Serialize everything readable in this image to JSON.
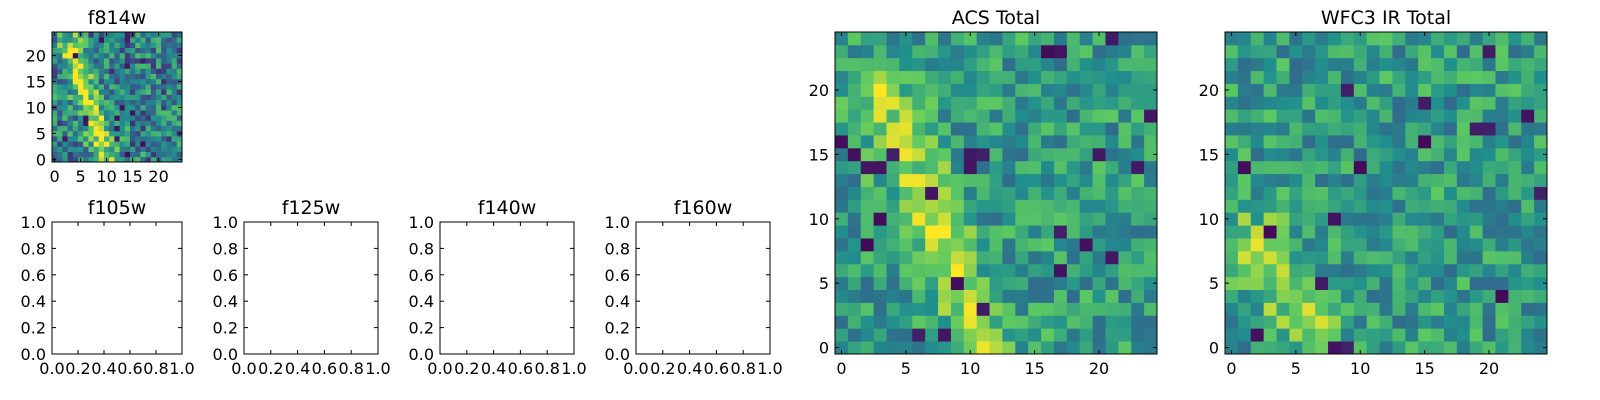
{
  "colormap": {
    "name": "viridis",
    "stops": [
      "#440154",
      "#3b528b",
      "#21908d",
      "#5dc962",
      "#fde725"
    ]
  },
  "chart_data": [
    {
      "id": "f814w",
      "type": "heatmap",
      "title": "f814w",
      "grid_size": 25,
      "x_ticks": [
        "0",
        "5",
        "10",
        "15",
        "20"
      ],
      "y_ticks": [
        "0",
        "5",
        "10",
        "15",
        "20"
      ],
      "xlim": [
        -0.5,
        24.5
      ],
      "ylim": [
        -0.5,
        24.5
      ],
      "pattern": {
        "ridge_start": [
          3,
          22
        ],
        "ridge_end": [
          10,
          0
        ],
        "seed": 11,
        "contrast": "high"
      }
    },
    {
      "id": "f105w",
      "type": "empty",
      "title": "f105w",
      "x_ticks": [
        "0.0",
        "0.2",
        "0.4",
        "0.6",
        "0.8",
        "1.0"
      ],
      "y_ticks": [
        "0.0",
        "0.2",
        "0.4",
        "0.6",
        "0.8",
        "1.0"
      ],
      "xlim": [
        0,
        1
      ],
      "ylim": [
        0,
        1
      ]
    },
    {
      "id": "f125w",
      "type": "empty",
      "title": "f125w",
      "x_ticks": [
        "0.0",
        "0.2",
        "0.4",
        "0.6",
        "0.8",
        "1.0"
      ],
      "y_ticks": [
        "0.0",
        "0.2",
        "0.4",
        "0.6",
        "0.8",
        "1.0"
      ],
      "xlim": [
        0,
        1
      ],
      "ylim": [
        0,
        1
      ]
    },
    {
      "id": "f140w",
      "type": "empty",
      "title": "f140w",
      "x_ticks": [
        "0.0",
        "0.2",
        "0.4",
        "0.6",
        "0.8",
        "1.0"
      ],
      "y_ticks": [
        "0.0",
        "0.2",
        "0.4",
        "0.6",
        "0.8",
        "1.0"
      ],
      "xlim": [
        0,
        1
      ],
      "ylim": [
        0,
        1
      ]
    },
    {
      "id": "f160w",
      "type": "empty",
      "title": "f160w",
      "x_ticks": [
        "0.0",
        "0.2",
        "0.4",
        "0.6",
        "0.8",
        "1.0"
      ],
      "y_ticks": [
        "0.0",
        "0.2",
        "0.4",
        "0.6",
        "0.8",
        "1.0"
      ],
      "xlim": [
        0,
        1
      ],
      "ylim": [
        0,
        1
      ]
    },
    {
      "id": "acs-total",
      "type": "heatmap",
      "title": "ACS Total",
      "grid_size": 25,
      "x_ticks": [
        "0",
        "5",
        "10",
        "15",
        "20"
      ],
      "y_ticks": [
        "0",
        "5",
        "10",
        "15",
        "20"
      ],
      "xlim": [
        -0.5,
        24.5
      ],
      "ylim": [
        -0.5,
        24.5
      ],
      "pattern": {
        "ridge_start": [
          3,
          20
        ],
        "ridge_end": [
          11,
          0
        ],
        "seed": 23,
        "contrast": "medium"
      }
    },
    {
      "id": "wfc3-ir-total",
      "type": "heatmap",
      "title": "WFC3 IR Total",
      "grid_size": 25,
      "x_ticks": [
        "0",
        "5",
        "10",
        "15",
        "20"
      ],
      "y_ticks": [
        "0",
        "5",
        "10",
        "15",
        "20"
      ],
      "xlim": [
        -0.5,
        24.5
      ],
      "ylim": [
        -0.5,
        24.5
      ],
      "pattern": {
        "ridge_start": [
          2,
          8
        ],
        "ridge_end": [
          6,
          2
        ],
        "seed": 47,
        "contrast": "medium"
      }
    }
  ]
}
